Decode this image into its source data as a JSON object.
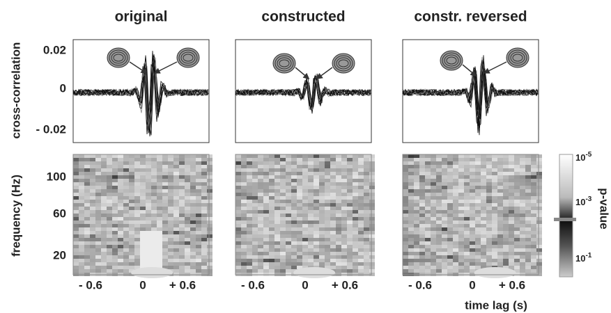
{
  "panels": [
    {
      "title": "original"
    },
    {
      "title": "constructed"
    },
    {
      "title": "constr. reversed"
    }
  ],
  "top_axis": {
    "label": "cross-correlation",
    "ticks": [
      0.02,
      0,
      "- 0.02"
    ]
  },
  "bottom_axis": {
    "label": "frequency (Hz)",
    "ticks": [
      100,
      60,
      20
    ]
  },
  "x_axis": {
    "label": "time lag (s)",
    "ticks": [
      "- 0.6",
      0,
      "+ 0.6"
    ]
  },
  "colorbar": {
    "label": "p-value",
    "ticks": [
      {
        "base": "10",
        "exponent": "-5"
      },
      {
        "base": "10",
        "exponent": "-3"
      },
      {
        "base": "10",
        "exponent": "-1"
      }
    ]
  }
}
